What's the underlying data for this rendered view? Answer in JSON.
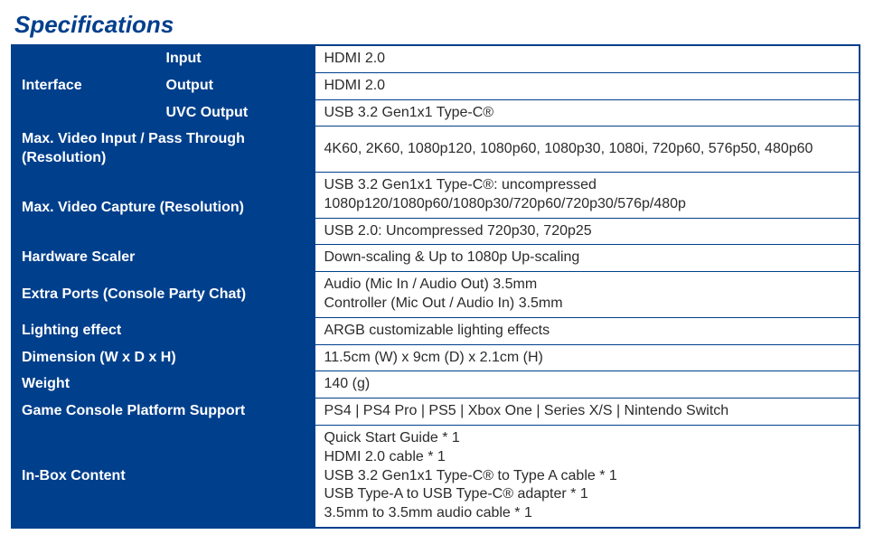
{
  "title": "Specifications",
  "colors": {
    "brand": "#003f8c",
    "text": "#2b2b2b",
    "bg": "#ffffff"
  },
  "columns": {
    "labelSplitWidthsPx": [
      160,
      175
    ]
  },
  "rows": [
    {
      "label": "Interface",
      "sublabel": "Input",
      "value": "HDMI 2.0"
    },
    {
      "label": "",
      "sublabel": "Output",
      "value": "HDMI 2.0"
    },
    {
      "label": "",
      "sublabel": "UVC Output",
      "value": "USB 3.2 Gen1x1 Type-C®"
    },
    {
      "label": "Max. Video Input / Pass Through (Resolution)",
      "value": "4K60, 2K60, 1080p120, 1080p60, 1080p30, 1080i, 720p60, 576p50, 480p60"
    },
    {
      "label": "Max. Video Capture (Resolution)",
      "values": [
        "USB 3.2 Gen1x1 Type-C®: uncompressed\n                                       1080p120/1080p60/1080p30/720p60/720p30/576p/480p",
        "USB 2.0: Uncompressed 720p30, 720p25"
      ]
    },
    {
      "label": "Hardware Scaler",
      "value": "Down-scaling & Up to 1080p Up-scaling"
    },
    {
      "label": "Extra Ports (Console Party Chat)",
      "value": "Audio (Mic In / Audio Out) 3.5mm\nController (Mic Out / Audio In) 3.5mm"
    },
    {
      "label": "Lighting effect",
      "value": "ARGB customizable lighting effects"
    },
    {
      "label": "Dimension (W x D x H)",
      "value": "11.5cm (W) x 9cm (D) x 2.1cm (H)"
    },
    {
      "label": "Weight",
      "value": "140 (g)"
    },
    {
      "label": "Game Console Platform Support",
      "value": "PS4 | PS4 Pro | PS5 | Xbox One | Series X/S | Nintendo Switch"
    },
    {
      "label": "In-Box Content",
      "value": "Quick Start Guide * 1\nHDMI 2.0 cable * 1\nUSB 3.2 Gen1x1  Type-C® to Type A cable * 1\nUSB Type-A to USB Type-C® adapter * 1\n3.5mm to 3.5mm audio cable  * 1"
    }
  ]
}
